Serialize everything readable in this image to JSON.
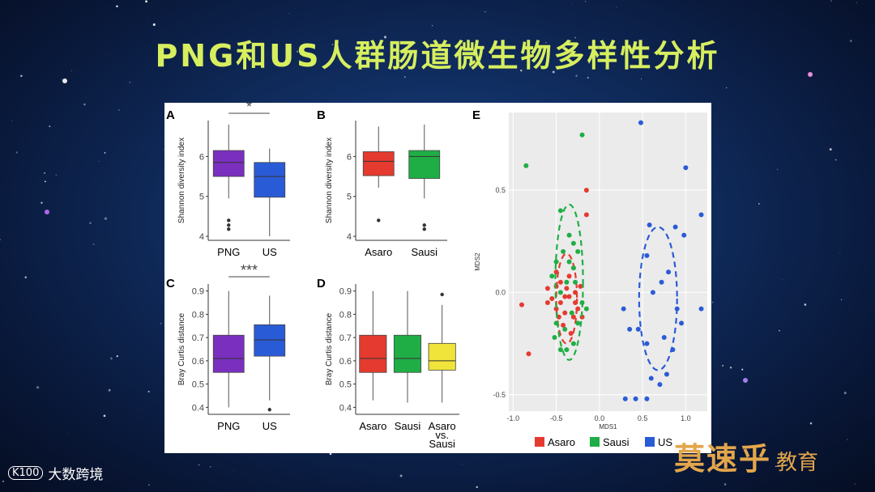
{
  "title": "PNG和US人群肠道微生物多样性分析",
  "brand_left": {
    "logo": "K100",
    "text": "大数跨境"
  },
  "brand_right": {
    "main": "莫速乎",
    "sub": "教育"
  },
  "colors": {
    "PNG": "#7b2fbe",
    "US": "#2a5bd6",
    "Asaro": "#e53a2f",
    "Sausi": "#1fae45",
    "AsaroSausi": "#f0e43a"
  },
  "chart_data": [
    {
      "panel": "A",
      "type": "box",
      "ylabel": "Shannon diversity index",
      "ylim": [
        3.9,
        6.9
      ],
      "yticks": [
        4,
        5,
        6
      ],
      "categories": [
        "PNG",
        "US"
      ],
      "significance": "*",
      "boxes": [
        {
          "name": "PNG",
          "q1": 5.5,
          "median": 5.85,
          "q3": 6.15,
          "wlow": 4.95,
          "whigh": 6.8,
          "outliers": [
            4.4,
            4.28,
            4.18
          ],
          "color": "#7b2fbe"
        },
        {
          "name": "US",
          "q1": 4.98,
          "median": 5.5,
          "q3": 5.85,
          "wlow": 4.0,
          "whigh": 6.2,
          "outliers": [],
          "color": "#2a5bd6"
        }
      ]
    },
    {
      "panel": "B",
      "type": "box",
      "ylabel": "Shannon diversity index",
      "ylim": [
        3.9,
        6.9
      ],
      "yticks": [
        4,
        5,
        6
      ],
      "categories": [
        "Asaro",
        "Sausi"
      ],
      "significance": "",
      "boxes": [
        {
          "name": "Asaro",
          "q1": 5.52,
          "median": 5.88,
          "q3": 6.12,
          "wlow": 5.22,
          "whigh": 6.75,
          "outliers": [
            4.4
          ],
          "color": "#e53a2f"
        },
        {
          "name": "Sausi",
          "q1": 5.45,
          "median": 6.0,
          "q3": 6.15,
          "wlow": 4.95,
          "whigh": 6.8,
          "outliers": [
            4.28,
            4.18
          ],
          "color": "#1fae45"
        }
      ]
    },
    {
      "panel": "C",
      "type": "box",
      "ylabel": "Bray Curtis distance",
      "ylim": [
        0.37,
        0.93
      ],
      "yticks": [
        0.4,
        0.5,
        0.6,
        0.7,
        0.8,
        0.9
      ],
      "categories": [
        "PNG",
        "US"
      ],
      "significance": "***",
      "boxes": [
        {
          "name": "PNG",
          "q1": 0.55,
          "median": 0.61,
          "q3": 0.71,
          "wlow": 0.4,
          "whigh": 0.9,
          "outliers": [],
          "color": "#7b2fbe"
        },
        {
          "name": "US",
          "q1": 0.62,
          "median": 0.69,
          "q3": 0.755,
          "wlow": 0.43,
          "whigh": 0.88,
          "outliers": [
            0.39
          ],
          "color": "#2a5bd6"
        }
      ]
    },
    {
      "panel": "D",
      "type": "box",
      "ylabel": "Bray Curtis distance",
      "ylim": [
        0.37,
        0.93
      ],
      "yticks": [
        0.4,
        0.5,
        0.6,
        0.7,
        0.8,
        0.9
      ],
      "categories": [
        "Asaro",
        "Sausi",
        "Asaro vs. Sausi"
      ],
      "significance": "",
      "boxes": [
        {
          "name": "Asaro",
          "q1": 0.55,
          "median": 0.61,
          "q3": 0.71,
          "wlow": 0.43,
          "whigh": 0.9,
          "outliers": [],
          "color": "#e53a2f"
        },
        {
          "name": "Sausi",
          "q1": 0.55,
          "median": 0.61,
          "q3": 0.71,
          "wlow": 0.42,
          "whigh": 0.9,
          "outliers": [],
          "color": "#1fae45"
        },
        {
          "name": "Asaro vs. Sausi",
          "q1": 0.56,
          "median": 0.6,
          "q3": 0.675,
          "wlow": 0.42,
          "whigh": 0.84,
          "outliers": [
            0.885
          ],
          "color": "#f0e43a"
        }
      ]
    },
    {
      "panel": "E",
      "type": "scatter",
      "xlabel": "MDS1",
      "ylabel": "MDS2",
      "xlim": [
        -1.05,
        1.25
      ],
      "ylim": [
        -0.58,
        0.88
      ],
      "xticks": [
        -1.0,
        -0.5,
        0.0,
        0.5,
        1.0
      ],
      "yticks": [
        -0.5,
        0.0,
        0.5
      ],
      "series": [
        {
          "name": "Asaro",
          "color": "#e53a2f",
          "ellipse": {
            "cx": -0.38,
            "cy": -0.03,
            "rx": 0.12,
            "ry": 0.22
          },
          "points": [
            [
              -0.82,
              -0.3
            ],
            [
              -0.9,
              -0.06
            ],
            [
              -0.15,
              0.5
            ],
            [
              -0.15,
              0.38
            ],
            [
              -0.5,
              0.1
            ],
            [
              -0.3,
              0.12
            ],
            [
              -0.6,
              -0.05
            ],
            [
              -0.5,
              -0.08
            ],
            [
              -0.45,
              -0.05
            ],
            [
              -0.4,
              -0.1
            ],
            [
              -0.35,
              -0.02
            ],
            [
              -0.28,
              0.0
            ],
            [
              -0.22,
              0.03
            ],
            [
              -0.45,
              0.05
            ],
            [
              -0.38,
              0.02
            ],
            [
              -0.3,
              -0.12
            ],
            [
              -0.25,
              -0.08
            ],
            [
              -0.55,
              -0.03
            ],
            [
              -0.42,
              -0.16
            ],
            [
              -0.33,
              -0.2
            ],
            [
              -0.5,
              0.03
            ],
            [
              -0.35,
              0.08
            ],
            [
              -0.28,
              -0.05
            ],
            [
              -0.4,
              -0.02
            ],
            [
              -0.2,
              -0.12
            ],
            [
              -0.6,
              0.02
            ],
            [
              -0.47,
              -0.12
            ]
          ]
        },
        {
          "name": "Sausi",
          "color": "#1fae45",
          "ellipse": {
            "cx": -0.35,
            "cy": 0.05,
            "rx": 0.16,
            "ry": 0.38
          },
          "points": [
            [
              -0.85,
              0.62
            ],
            [
              -0.2,
              0.77
            ],
            [
              -0.45,
              0.4
            ],
            [
              -0.35,
              0.28
            ],
            [
              -0.3,
              0.24
            ],
            [
              -0.42,
              0.2
            ],
            [
              -0.5,
              0.15
            ],
            [
              -0.25,
              0.2
            ],
            [
              -0.3,
              0.12
            ],
            [
              -0.38,
              0.05
            ],
            [
              -0.45,
              0.0
            ],
            [
              -0.32,
              -0.1
            ],
            [
              -0.25,
              -0.15
            ],
            [
              -0.4,
              -0.18
            ],
            [
              -0.45,
              -0.28
            ],
            [
              -0.38,
              -0.28
            ],
            [
              -0.3,
              -0.25
            ],
            [
              -0.5,
              -0.15
            ],
            [
              -0.2,
              -0.05
            ],
            [
              -0.55,
              0.08
            ],
            [
              -0.15,
              -0.08
            ],
            [
              -0.35,
              0.15
            ],
            [
              -0.52,
              -0.22
            ],
            [
              -0.28,
              0.05
            ]
          ]
        },
        {
          "name": "US",
          "color": "#2a5bd6",
          "ellipse": {
            "cx": 0.68,
            "cy": -0.03,
            "rx": 0.22,
            "ry": 0.35
          },
          "points": [
            [
              0.48,
              0.83
            ],
            [
              1.0,
              0.61
            ],
            [
              0.58,
              0.33
            ],
            [
              0.88,
              0.32
            ],
            [
              0.98,
              0.28
            ],
            [
              1.18,
              0.38
            ],
            [
              0.55,
              0.18
            ],
            [
              0.8,
              0.1
            ],
            [
              0.72,
              0.05
            ],
            [
              0.62,
              0.0
            ],
            [
              0.28,
              -0.08
            ],
            [
              0.9,
              -0.08
            ],
            [
              1.18,
              -0.08
            ],
            [
              0.35,
              -0.18
            ],
            [
              0.45,
              -0.18
            ],
            [
              0.55,
              -0.25
            ],
            [
              0.75,
              -0.22
            ],
            [
              0.85,
              -0.28
            ],
            [
              0.6,
              -0.42
            ],
            [
              0.7,
              -0.45
            ],
            [
              0.78,
              -0.4
            ],
            [
              0.3,
              -0.52
            ],
            [
              0.42,
              -0.52
            ],
            [
              0.55,
              -0.52
            ],
            [
              0.95,
              -0.15
            ]
          ]
        }
      ]
    }
  ]
}
